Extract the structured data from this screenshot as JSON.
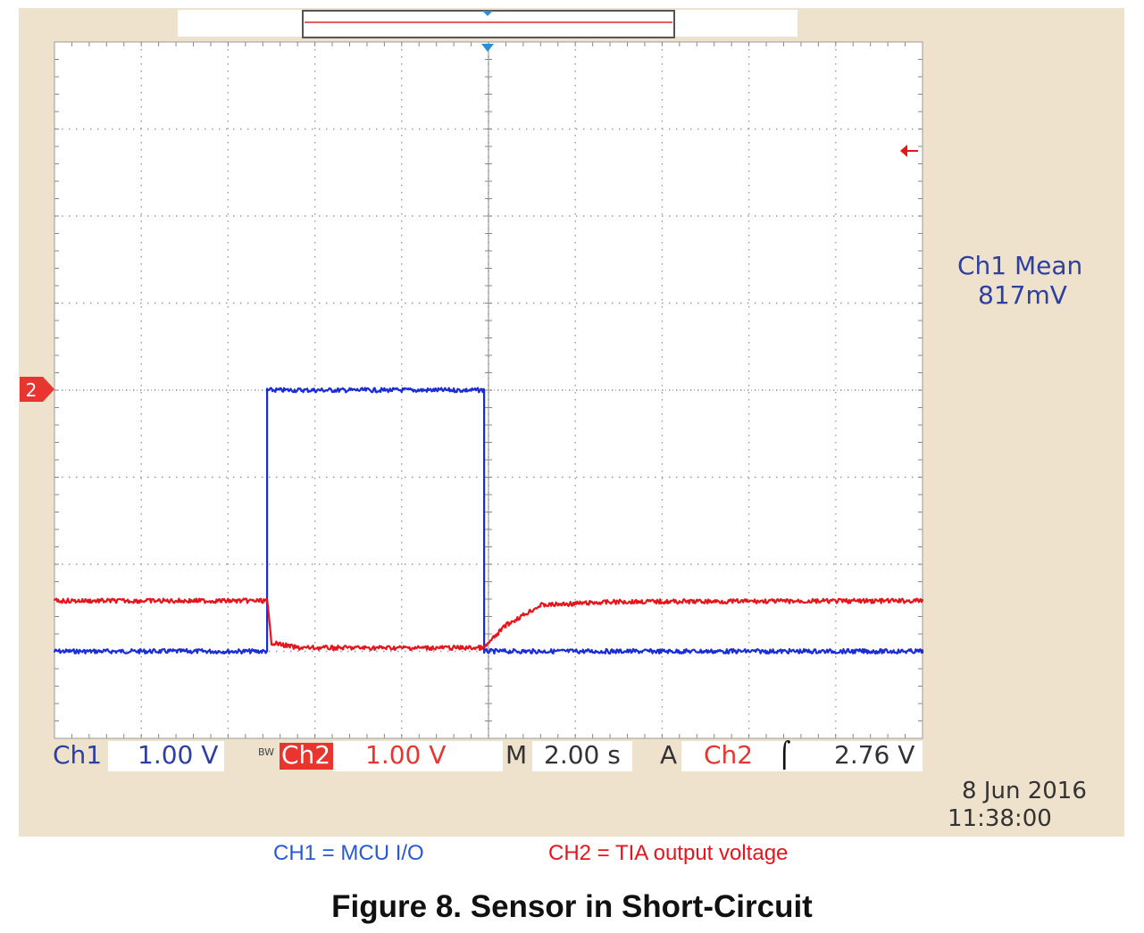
{
  "colors": {
    "ch1": "#1a2bd8",
    "ch2": "#e8141c",
    "bezel": "#efe2cc",
    "grid": "#9a9a9a"
  },
  "chart_data": {
    "type": "line",
    "x_divisions": 10,
    "y_divisions": 8,
    "grid": true,
    "series": [
      {
        "name": "Ch1",
        "x": [
          0,
          2.45,
          2.45,
          4.95,
          4.95,
          10
        ],
        "y": [
          -3.0,
          -3.0,
          0.0,
          0.0,
          -3.0,
          -3.0
        ]
      },
      {
        "name": "Ch2",
        "x": [
          0,
          2.45,
          2.5,
          2.8,
          4.95,
          5.2,
          5.6,
          6.5,
          10
        ],
        "y": [
          -2.42,
          -2.42,
          -2.9,
          -2.96,
          -2.96,
          -2.7,
          -2.47,
          -2.43,
          -2.42
        ]
      }
    ]
  },
  "scope": {
    "ch1_label": "Ch1",
    "ch1_scale": "1.00 V",
    "bw_label": "BW",
    "ch2_label": "Ch2",
    "ch2_scale": "1.00 V",
    "m_label": "M",
    "timebase": "2.00 s",
    "trigger_a": "A",
    "trigger_src": "Ch2",
    "trigger_slope": "⌠",
    "trigger_level": "2.76 V",
    "measure_title": "Ch1 Mean",
    "measure_value": "817mV",
    "date": "8 Jun  2016",
    "time": "11:38:00",
    "ch2_marker": "2"
  },
  "legend": {
    "ch1": "CH1 = MCU I/O",
    "ch2": "CH2 = TIA output voltage"
  },
  "caption": "Figure 8. Sensor in Short-Circuit"
}
